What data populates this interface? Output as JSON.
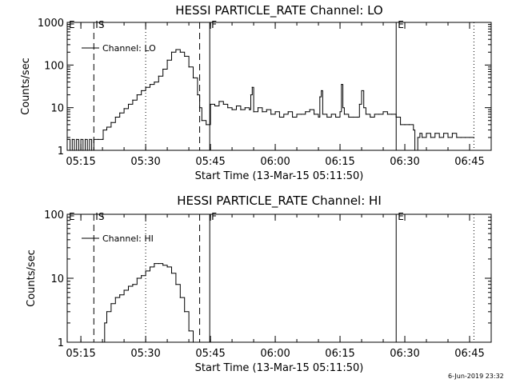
{
  "chart_data": [
    {
      "type": "line",
      "title": "HESSI PARTICLE_RATE Channel: LO",
      "ylabel": "Counts/sec",
      "xlabel": "Start Time (13-Mar-15 05:11:50)",
      "yscale": "log",
      "ylim": [
        1,
        1000
      ],
      "xlim": [
        "05:11:50",
        "06:50:00"
      ],
      "yticks": [
        {
          "v": 1,
          "l": "1"
        },
        {
          "v": 10,
          "l": "10"
        },
        {
          "v": 100,
          "l": "100"
        },
        {
          "v": 1000,
          "l": "1000"
        }
      ],
      "xticks": [
        "05:15",
        "05:30",
        "05:45",
        "06:00",
        "06:15",
        "06:30",
        "06:45"
      ],
      "legend": "Channel: LO",
      "markers": [
        {
          "time": "05:11:50",
          "label": "E",
          "style": "none"
        },
        {
          "time": "05:18:00",
          "label": "IS",
          "style": "dashed"
        },
        {
          "time": "05:30:00",
          "label": "",
          "style": "dotted"
        },
        {
          "time": "05:42:30",
          "label": "",
          "style": "dashed"
        },
        {
          "time": "05:44:50",
          "label": "F",
          "style": "solid"
        },
        {
          "time": "06:28:00",
          "label": "E",
          "style": "solid"
        },
        {
          "time": "06:46:00",
          "label": "",
          "style": "dotted"
        }
      ],
      "series": [
        {
          "x": [
            "05:11:50",
            "05:12:30",
            "05:13:00",
            "05:13:30",
            "05:14:00",
            "05:14:30",
            "05:15:00",
            "05:15:30",
            "05:16:00",
            "05:16:30",
            "05:17:00",
            "05:17:30",
            "05:18:00",
            "05:19:00",
            "05:20:00",
            "05:20:10",
            "05:21:00",
            "05:22:00",
            "05:23:00",
            "05:24:00",
            "05:25:00",
            "05:26:00",
            "05:27:00",
            "05:28:00",
            "05:29:00",
            "05:30:00",
            "05:31:00",
            "05:32:00",
            "05:33:00",
            "05:34:00",
            "05:35:00",
            "05:36:00",
            "05:37:00",
            "05:38:00",
            "05:39:00",
            "05:40:00",
            "05:41:00",
            "05:42:00",
            "05:42:30",
            "05:43:00",
            "05:44:00",
            "05:44:50",
            "05:45:00",
            "05:46:00",
            "05:47:00",
            "05:48:00",
            "05:49:00",
            "05:50:00",
            "05:51:00",
            "05:52:00",
            "05:53:00",
            "05:54:00",
            "05:54:20",
            "05:54:40",
            "05:55:00",
            "05:56:00",
            "05:57:00",
            "05:58:00",
            "05:59:00",
            "06:00:00",
            "06:01:00",
            "06:02:00",
            "06:03:00",
            "06:04:00",
            "06:05:00",
            "06:06:00",
            "06:07:00",
            "06:08:00",
            "06:09:00",
            "06:10:00",
            "06:10:20",
            "06:10:40",
            "06:11:00",
            "06:12:00",
            "06:13:00",
            "06:14:00",
            "06:15:00",
            "06:15:20",
            "06:15:40",
            "06:16:00",
            "06:17:00",
            "06:18:00",
            "06:19:00",
            "06:19:30",
            "06:20:00",
            "06:20:30",
            "06:21:00",
            "06:22:00",
            "06:23:00",
            "06:24:00",
            "06:25:00",
            "06:26:00",
            "06:27:00",
            "06:28:00",
            "06:29:00",
            "06:30:00",
            "06:31:00",
            "06:32:00",
            "06:32:20",
            "06:33:00",
            "06:33:30",
            "06:34:00",
            "06:35:00",
            "06:36:00",
            "06:37:00",
            "06:38:00",
            "06:39:00",
            "06:40:00",
            "06:41:00",
            "06:42:00",
            "06:43:00",
            "06:44:00",
            "06:45:00",
            "06:46:00"
          ],
          "y": [
            1.8,
            1,
            1.8,
            1,
            1.8,
            1,
            1.8,
            1,
            1.8,
            1,
            1.8,
            1,
            1.8,
            1.8,
            1.8,
            3,
            3.5,
            4.5,
            6,
            7.5,
            9.5,
            12,
            15,
            20,
            25,
            30,
            35,
            40,
            55,
            80,
            130,
            200,
            230,
            200,
            160,
            90,
            50,
            20,
            10,
            5,
            4,
            4,
            12,
            11,
            14,
            12,
            10,
            9,
            11,
            9,
            10,
            9,
            20,
            30,
            8,
            10,
            8,
            9,
            7,
            8,
            6,
            7,
            8,
            6,
            7,
            7,
            8,
            9,
            7,
            6,
            18,
            25,
            7,
            6,
            7,
            6,
            8,
            35,
            10,
            7,
            6,
            6,
            6,
            12,
            25,
            10,
            7,
            6,
            7,
            7,
            8,
            7,
            7,
            6,
            4,
            4,
            4,
            3,
            1,
            2,
            2.5,
            2,
            2.5,
            2,
            2.5,
            2,
            2.5,
            2,
            2.5,
            2,
            2,
            2,
            2,
            2
          ]
        }
      ]
    },
    {
      "type": "line",
      "title": "HESSI PARTICLE_RATE Channel: HI",
      "ylabel": "Counts/sec",
      "xlabel": "Start Time (13-Mar-15 05:11:50)",
      "yscale": "log",
      "ylim": [
        1,
        100
      ],
      "xlim": [
        "05:11:50",
        "06:50:00"
      ],
      "yticks": [
        {
          "v": 1,
          "l": "1"
        },
        {
          "v": 10,
          "l": "10"
        },
        {
          "v": 100,
          "l": "100"
        }
      ],
      "xticks": [
        "05:15",
        "05:30",
        "05:45",
        "06:00",
        "06:15",
        "06:30",
        "06:45"
      ],
      "legend": "Channel: HI",
      "markers": [
        {
          "time": "05:11:50",
          "label": "E",
          "style": "none"
        },
        {
          "time": "05:18:00",
          "label": "IS",
          "style": "dashed"
        },
        {
          "time": "05:30:00",
          "label": "",
          "style": "dotted"
        },
        {
          "time": "05:42:30",
          "label": "",
          "style": "dashed"
        },
        {
          "time": "05:44:50",
          "label": "F",
          "style": "solid"
        },
        {
          "time": "06:28:00",
          "label": "E",
          "style": "solid"
        },
        {
          "time": "06:46:00",
          "label": "",
          "style": "dotted"
        }
      ],
      "series": [
        {
          "x": [
            "05:20:00",
            "05:20:30",
            "05:21:00",
            "05:22:00",
            "05:23:00",
            "05:24:00",
            "05:25:00",
            "05:26:00",
            "05:27:00",
            "05:28:00",
            "05:29:00",
            "05:30:00",
            "05:31:00",
            "05:32:00",
            "05:33:00",
            "05:34:00",
            "05:35:00",
            "05:36:00",
            "05:37:00",
            "05:38:00",
            "05:39:00",
            "05:40:00",
            "05:41:00"
          ],
          "y": [
            1,
            2,
            3,
            4,
            5,
            5.5,
            6.5,
            7.5,
            8,
            10,
            11,
            13,
            15,
            17,
            17,
            16,
            15,
            12,
            8,
            5,
            3,
            1.5,
            1
          ]
        }
      ]
    }
  ],
  "footer": {
    "timestamp": "6-Jun-2019 23:32"
  }
}
